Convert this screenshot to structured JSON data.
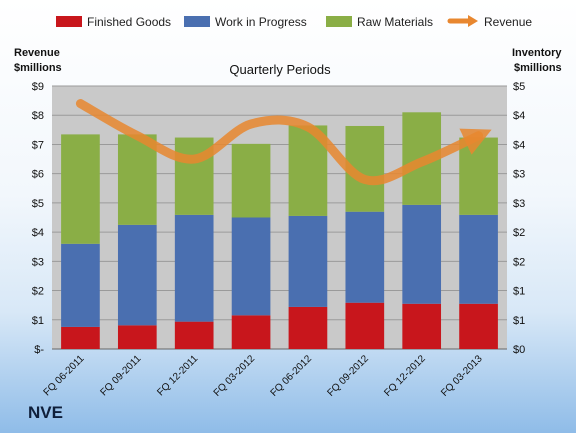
{
  "chart_data": {
    "type": "bar",
    "stacked": true,
    "title": "Quarterly Periods",
    "left_axis_label": [
      "Revenue",
      "$millions"
    ],
    "right_axis_label": [
      "Inventory",
      "$millions"
    ],
    "categories": [
      "FQ 06-2011",
      "FQ 09-2011",
      "FQ 12-2011",
      "FQ 03-2012",
      "FQ 06-2012",
      "FQ 09-2012",
      "FQ 12-2012",
      "FQ 03-2013"
    ],
    "left_ticks": [
      "$-",
      "$1",
      "$2",
      "$3",
      "$4",
      "$5",
      "$6",
      "$7",
      "$8",
      "$9"
    ],
    "right_ticks": [
      "$0",
      "$1",
      "$1",
      "$2",
      "$2",
      "$3",
      "$3",
      "$4",
      "$4",
      "$5"
    ],
    "left_ylim": [
      0,
      9
    ],
    "right_ylim": [
      0,
      5
    ],
    "series": [
      {
        "name": "Finished Goods",
        "axis": "right",
        "color": "#c8161c",
        "values": [
          0.42,
          0.45,
          0.52,
          0.64,
          0.8,
          0.88,
          0.86,
          0.86
        ]
      },
      {
        "name": "Work in Progress",
        "axis": "right",
        "color": "#4a6fb0",
        "values": [
          1.58,
          1.91,
          2.03,
          1.86,
          1.73,
          1.73,
          1.88,
          1.69
        ]
      },
      {
        "name": "Raw Materials",
        "axis": "right",
        "color": "#8aae46",
        "values": [
          2.08,
          1.72,
          1.47,
          1.4,
          1.72,
          1.63,
          1.76,
          1.47
        ]
      }
    ],
    "line_series": {
      "name": "Revenue",
      "axis": "left",
      "color": "#e8872f",
      "values": [
        8.4,
        7.3,
        6.5,
        7.7,
        7.6,
        5.8,
        6.4,
        7.3
      ]
    },
    "grid": true,
    "legend_position": "top"
  },
  "brand": "NVE"
}
